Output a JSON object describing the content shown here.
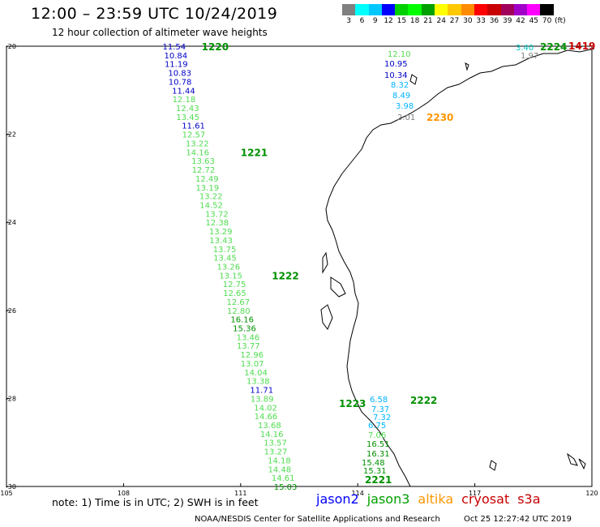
{
  "header": {
    "title": "12:00 – 23:59 UTC 10/24/2019",
    "subtitle": "12 hour collection of altimeter wave heights"
  },
  "legend": {
    "labels": [
      "3",
      "6",
      "9",
      "12",
      "15",
      "18",
      "21",
      "24",
      "27",
      "30",
      "33",
      "36",
      "39",
      "42",
      "45",
      "70",
      "(ft)"
    ],
    "colors": [
      "#808080",
      "#00ffff",
      "#00c8ff",
      "#0000ff",
      "#00d000",
      "#00ff00",
      "#00a000",
      "#ffff00",
      "#ffc800",
      "#ff8c00",
      "#ff0000",
      "#c80000",
      "#a0005a",
      "#a000c8",
      "#ff00ff",
      "#000000"
    ]
  },
  "chart_data": {
    "type": "map",
    "x_ticks": [
      "105",
      "108",
      "111",
      "114",
      "117",
      "120"
    ],
    "y_ticks": [
      "-20",
      "-22",
      "-24",
      "-26",
      "-28",
      "-30"
    ],
    "xlim": [
      105,
      120
    ],
    "ylim": [
      -30,
      -20
    ],
    "tracks": [
      {
        "time_labels": [
          {
            "label": "1220",
            "color": "#009000",
            "x": 110.0,
            "y": -20.0
          },
          {
            "label": "1221",
            "color": "#009000",
            "x": 111.0,
            "y": -22.4
          },
          {
            "label": "1222",
            "color": "#009000",
            "x": 111.8,
            "y": -25.2
          }
        ],
        "points": [
          {
            "t": "11.54",
            "c": "#0000c8",
            "x": 109.0,
            "y": -20.0
          },
          {
            "t": "10.84",
            "c": "#0000c8",
            "x": 109.0,
            "y": -20.2
          },
          {
            "t": "11.19",
            "c": "#0000c8",
            "x": 109.05,
            "y": -20.4
          },
          {
            "t": "10.83",
            "c": "#0000c8",
            "x": 109.1,
            "y": -20.6
          },
          {
            "t": "10.78",
            "c": "#0000c8",
            "x": 109.15,
            "y": -20.8
          },
          {
            "t": "11.44",
            "c": "#0000c8",
            "x": 109.2,
            "y": -21.0
          },
          {
            "t": "12.18",
            "c": "#50dc50",
            "x": 109.25,
            "y": -21.2
          },
          {
            "t": "12.43",
            "c": "#50dc50",
            "x": 109.3,
            "y": -21.4
          },
          {
            "t": "13.45",
            "c": "#50dc50",
            "x": 109.35,
            "y": -21.6
          },
          {
            "t": "11.61",
            "c": "#0000c8",
            "x": 109.45,
            "y": -21.8
          },
          {
            "t": "12.57",
            "c": "#50dc50",
            "x": 109.5,
            "y": -22.0
          },
          {
            "t": "13.22",
            "c": "#50dc50",
            "x": 109.55,
            "y": -22.2
          },
          {
            "t": "14.16",
            "c": "#50dc50",
            "x": 109.6,
            "y": -22.4
          },
          {
            "t": "13.63",
            "c": "#50dc50",
            "x": 109.7,
            "y": -22.6
          },
          {
            "t": "12.72",
            "c": "#50dc50",
            "x": 109.75,
            "y": -22.8
          },
          {
            "t": "12.49",
            "c": "#50dc50",
            "x": 109.8,
            "y": -23.0
          },
          {
            "t": "13.19",
            "c": "#50dc50",
            "x": 109.85,
            "y": -23.2
          },
          {
            "t": "13.22",
            "c": "#50dc50",
            "x": 109.9,
            "y": -23.4
          },
          {
            "t": "14.52",
            "c": "#50dc50",
            "x": 109.95,
            "y": -23.6
          },
          {
            "t": "13.72",
            "c": "#50dc50",
            "x": 110.05,
            "y": -23.8
          },
          {
            "t": "12.38",
            "c": "#50dc50",
            "x": 110.1,
            "y": -24.0
          },
          {
            "t": "13.29",
            "c": "#50dc50",
            "x": 110.15,
            "y": -24.2
          },
          {
            "t": "13.43",
            "c": "#50dc50",
            "x": 110.2,
            "y": -24.4
          },
          {
            "t": "13.75",
            "c": "#50dc50",
            "x": 110.25,
            "y": -24.6
          },
          {
            "t": "13.45",
            "c": "#50dc50",
            "x": 110.3,
            "y": -24.8
          },
          {
            "t": "13.26",
            "c": "#50dc50",
            "x": 110.35,
            "y": -25.0
          },
          {
            "t": "13.15",
            "c": "#50dc50",
            "x": 110.45,
            "y": -25.2
          },
          {
            "t": "12.75",
            "c": "#50dc50",
            "x": 110.5,
            "y": -25.4
          },
          {
            "t": "12.65",
            "c": "#50dc50",
            "x": 110.55,
            "y": -25.6
          },
          {
            "t": "12.67",
            "c": "#50dc50",
            "x": 110.6,
            "y": -25.8
          },
          {
            "t": "12.80",
            "c": "#50dc50",
            "x": 110.65,
            "y": -26.0
          },
          {
            "t": "16.16",
            "c": "#009000",
            "x": 110.7,
            "y": -26.2
          },
          {
            "t": "15.36",
            "c": "#009000",
            "x": 110.8,
            "y": -26.4
          },
          {
            "t": "13.46",
            "c": "#50dc50",
            "x": 110.85,
            "y": -26.6
          },
          {
            "t": "13.77",
            "c": "#50dc50",
            "x": 110.9,
            "y": -26.8
          },
          {
            "t": "12.96",
            "c": "#50dc50",
            "x": 110.95,
            "y": -27.0
          },
          {
            "t": "13.07",
            "c": "#50dc50",
            "x": 111.0,
            "y": -27.2
          },
          {
            "t": "14.04",
            "c": "#50dc50",
            "x": 111.05,
            "y": -27.4
          },
          {
            "t": "13.38",
            "c": "#50dc50",
            "x": 111.15,
            "y": -27.6
          },
          {
            "t": "11.71",
            "c": "#0000c8",
            "x": 111.2,
            "y": -27.8
          },
          {
            "t": "13.89",
            "c": "#50dc50",
            "x": 111.25,
            "y": -28.0
          },
          {
            "t": "14.02",
            "c": "#50dc50",
            "x": 111.3,
            "y": -28.2
          },
          {
            "t": "14.66",
            "c": "#50dc50",
            "x": 111.35,
            "y": -28.4
          },
          {
            "t": "13.68",
            "c": "#50dc50",
            "x": 111.4,
            "y": -28.6
          },
          {
            "t": "14.16",
            "c": "#50dc50",
            "x": 111.5,
            "y": -28.8
          },
          {
            "t": "13.57",
            "c": "#50dc50",
            "x": 111.55,
            "y": -29.0
          },
          {
            "t": "13.27",
            "c": "#50dc50",
            "x": 111.6,
            "y": -29.2
          },
          {
            "t": "14.18",
            "c": "#50dc50",
            "x": 111.65,
            "y": -29.4
          },
          {
            "t": "14.48",
            "c": "#50dc50",
            "x": 111.7,
            "y": -29.6
          },
          {
            "t": "14.61",
            "c": "#50dc50",
            "x": 111.75,
            "y": -29.8
          },
          {
            "t": "15.03",
            "c": "#009000",
            "x": 111.85,
            "y": -30.0
          }
        ]
      }
    ]
  },
  "east_track": {
    "time_labels": [
      {
        "label": "2230",
        "color": "#ff9600"
      },
      {
        "label": "2222",
        "color": "#009000"
      },
      {
        "label": "1223",
        "color": "#009000"
      },
      {
        "label": "2221",
        "color": "#009000"
      },
      {
        "label": "2224",
        "color": "#009000"
      },
      {
        "label": "1419",
        "color": "#c80000"
      }
    ],
    "points": [
      {
        "t": "12.10",
        "c": "#50dc50"
      },
      {
        "t": "10.95",
        "c": "#0000c8"
      },
      {
        "t": "10.34",
        "c": "#0000c8"
      },
      {
        "t": "8.32",
        "c": "#00b4ff"
      },
      {
        "t": "8.49",
        "c": "#00b4ff"
      },
      {
        "t": "3.98",
        "c": "#00b4ff"
      },
      {
        "t": "2.01",
        "c": "#808080"
      },
      {
        "t": "6.58",
        "c": "#00b4ff"
      },
      {
        "t": "7.37",
        "c": "#00b4ff"
      },
      {
        "t": "7.32",
        "c": "#00b4ff"
      },
      {
        "t": "6.75",
        "c": "#00b4ff"
      },
      {
        "t": "7.06",
        "c": "#50dc50"
      },
      {
        "t": "16.51",
        "c": "#009000"
      },
      {
        "t": "16.31",
        "c": "#009000"
      },
      {
        "t": "15.48",
        "c": "#009000"
      },
      {
        "t": "15.31",
        "c": "#009000"
      },
      {
        "t": "3.40",
        "c": "#00c8c8"
      },
      {
        "t": "1.97",
        "c": "#808080"
      }
    ]
  },
  "footer": {
    "note": "note:  1) Time is in UTC;  2) SWH is in feet",
    "satellites": [
      {
        "name": "jason2",
        "color": "#0000ff"
      },
      {
        "name": "jason3",
        "color": "#00a000"
      },
      {
        "name": "altika",
        "color": "#ff9600"
      },
      {
        "name": "cryosat",
        "color": "#c80000"
      },
      {
        "name": "s3a",
        "color": "#c80000"
      }
    ],
    "credit_left": "NOAA/NESDIS Center for Satellite Applications and Research",
    "credit_right": "Oct 25 12:27:42 UTC 2019"
  }
}
